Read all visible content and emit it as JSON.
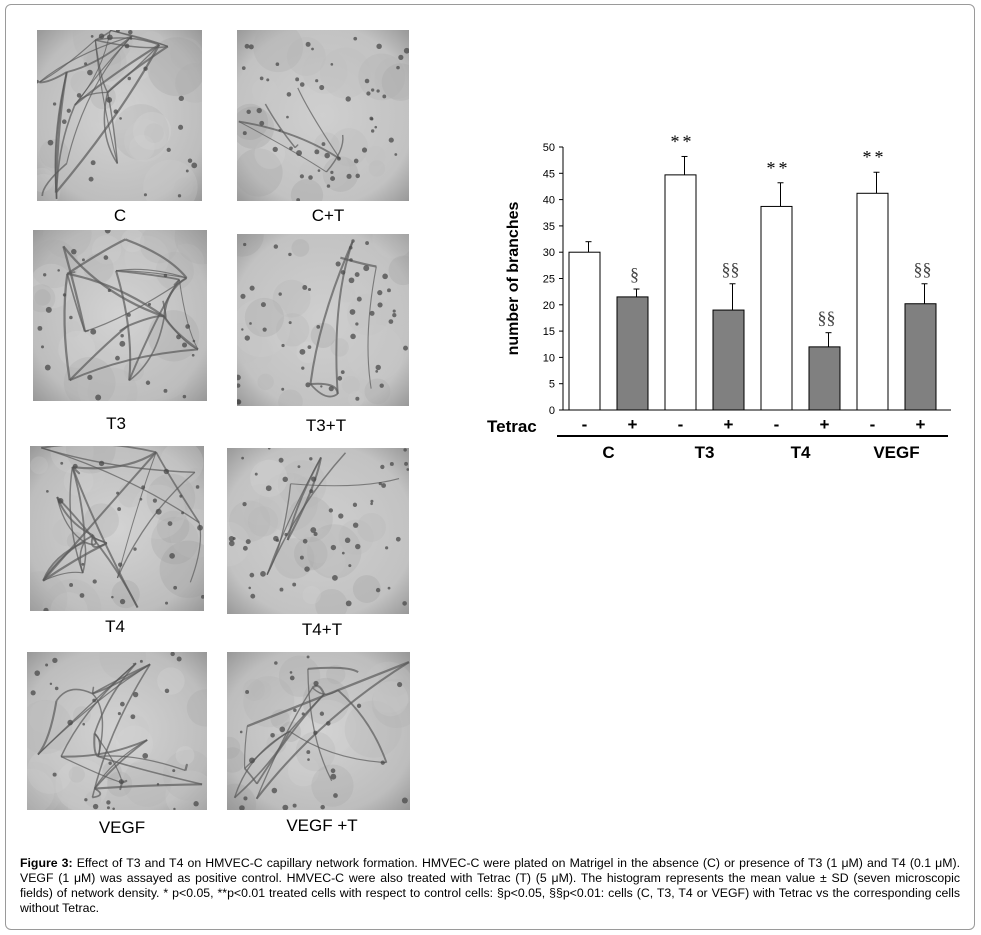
{
  "panels": [
    {
      "label": "C",
      "texture": "network-dense"
    },
    {
      "label": "C+T",
      "texture": "sparse"
    },
    {
      "label": "T3",
      "texture": "network-dense"
    },
    {
      "label": "T3+T",
      "texture": "sparse"
    },
    {
      "label": "T4",
      "texture": "network-dense"
    },
    {
      "label": "T4+T",
      "texture": "sparse"
    },
    {
      "label": "VEGF",
      "texture": "network-dense"
    },
    {
      "label": "VEGF +T",
      "texture": "network-medium"
    }
  ],
  "chart_data": {
    "type": "bar",
    "ylabel": "number of branches",
    "ylim": [
      0,
      50
    ],
    "yticks": [
      0,
      5,
      10,
      15,
      20,
      25,
      30,
      35,
      40,
      45,
      50
    ],
    "row_label": "Tetrac",
    "groups": [
      "C",
      "T3",
      "T4",
      "VEGF"
    ],
    "subgroups": [
      "-",
      "+"
    ],
    "colors": {
      "minus": "#ffffff",
      "plus": "#808080"
    },
    "bars": [
      {
        "group": "C",
        "tetrac": "-",
        "value": 30,
        "sd": 2,
        "annotation": ""
      },
      {
        "group": "C",
        "tetrac": "+",
        "value": 21.5,
        "sd": 1.5,
        "annotation": "§"
      },
      {
        "group": "T3",
        "tetrac": "-",
        "value": 44.7,
        "sd": 3.5,
        "annotation": "**"
      },
      {
        "group": "T3",
        "tetrac": "+",
        "value": 19,
        "sd": 5,
        "annotation": "§§"
      },
      {
        "group": "T4",
        "tetrac": "-",
        "value": 38.7,
        "sd": 4.5,
        "annotation": "**"
      },
      {
        "group": "T4",
        "tetrac": "+",
        "value": 12,
        "sd": 2.7,
        "annotation": "§§"
      },
      {
        "group": "VEGF",
        "tetrac": "-",
        "value": 41.2,
        "sd": 4,
        "annotation": "**"
      },
      {
        "group": "VEGF",
        "tetrac": "+",
        "value": 20.2,
        "sd": 3.8,
        "annotation": "§§"
      }
    ]
  },
  "caption": {
    "lead": "Figure 3:",
    "text": " Effect of T3 and T4 on HMVEC-C capillary network formation. HMVEC-C were plated on Matrigel in the absence (C) or presence of T3 (1 μM) and T4 (0.1 μM). VEGF (1 μM) was assayed as positive control. HMVEC-C were also treated with Tetrac (T) (5 μM). The histogram represents the mean value ± SD (seven microscopic fields) of network density. * p<0.05, **p<0.01 treated cells with respect to control cells: §p<0.05, §§p<0.01: cells (C, T3, T4 or VEGF) with Tetrac vs the corresponding cells without Tetrac."
  }
}
